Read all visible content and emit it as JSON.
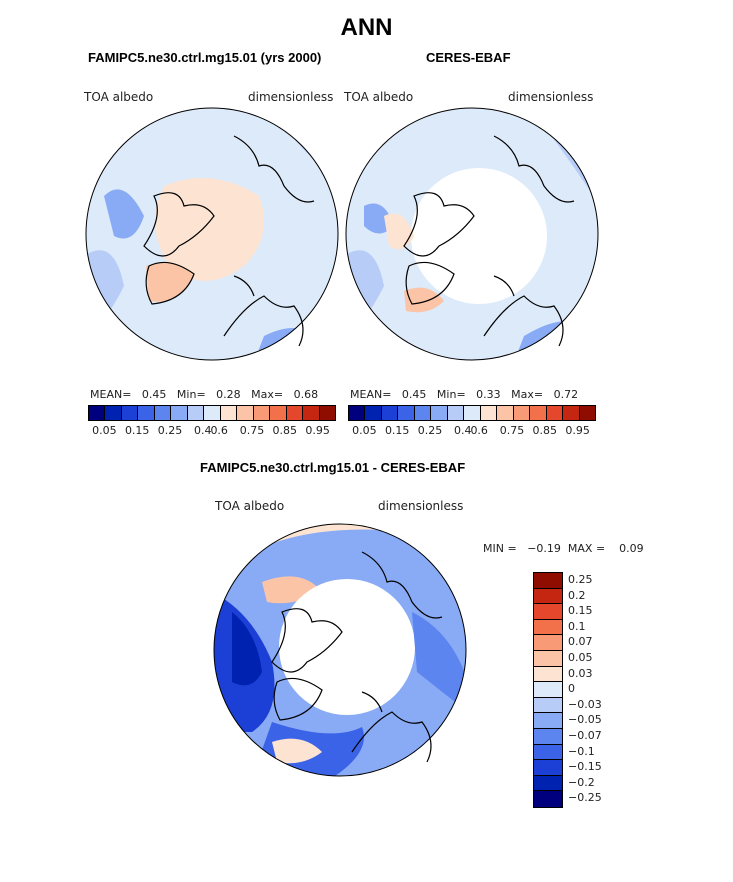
{
  "figure_title": "ANN",
  "panels": [
    {
      "title": "FAMIPC5.ne30.ctrl.mg15.01 (yrs 2000)",
      "var_label": "TOA albedo",
      "units": "dimensionless",
      "mean_label": "MEAN=",
      "mean": "0.45",
      "min_label": "Min=",
      "min": "0.28",
      "max_label": "Max=",
      "max": "0.68"
    },
    {
      "title": "CERES-EBAF",
      "var_label": "TOA albedo",
      "units": "dimensionless",
      "mean_label": "MEAN=",
      "mean": "0.45",
      "min_label": "Min=",
      "min": "0.33",
      "max_label": "Max=",
      "max": "0.72"
    },
    {
      "title": "FAMIPC5.ne30.ctrl.mg15.01 - CERES-EBAF",
      "var_label": "TOA albedo",
      "units": "dimensionless",
      "min_label": "MIN =",
      "min": "−0.19",
      "max_label": "MAX =",
      "max": "0.09"
    }
  ],
  "colorbar_abs": {
    "colors": [
      "#00007f",
      "#0022b0",
      "#1c3fd6",
      "#3b63e8",
      "#5c85f0",
      "#89abf5",
      "#b7ccf7",
      "#ddeafa",
      "#fde4d2",
      "#fcc4a6",
      "#f89a76",
      "#f2714a",
      "#e4472b",
      "#c42612",
      "#8f0c00"
    ],
    "tick_labels": [
      "0.05",
      "0.15",
      "0.25",
      "0.4",
      "0.6",
      "0.75",
      "0.85",
      "0.95"
    ]
  },
  "colorbar_diff": {
    "colors": [
      "#8f0c00",
      "#c42612",
      "#e4472b",
      "#f2714a",
      "#f89a76",
      "#fcc4a6",
      "#fde4d2",
      "#ddeafa",
      "#b7ccf7",
      "#89abf5",
      "#5c85f0",
      "#3b63e8",
      "#1c3fd6",
      "#0022b0",
      "#00007f"
    ],
    "labels": [
      "0.25",
      "0.2",
      "0.15",
      "0.1",
      "0.07",
      "0.05",
      "0.03",
      "0",
      "−0.03",
      "−0.05",
      "−0.07",
      "−0.1",
      "−0.15",
      "−0.2",
      "−0.25"
    ]
  },
  "chart_data": [
    {
      "type": "heatmap",
      "projection": "north polar stereographic",
      "title": "FAMIPC5.ne30.ctrl.mg15.01 (yrs 2000)",
      "variable": "TOA albedo",
      "units": "dimensionless",
      "mean": 0.45,
      "min": 0.28,
      "max": 0.68,
      "levels": [
        0.05,
        0.1,
        0.15,
        0.2,
        0.25,
        0.3,
        0.4,
        0.5,
        0.6,
        0.65,
        0.75,
        0.8,
        0.85,
        0.9,
        0.95
      ]
    },
    {
      "type": "heatmap",
      "projection": "north polar stereographic",
      "title": "CERES-EBAF",
      "variable": "TOA albedo",
      "units": "dimensionless",
      "mean": 0.45,
      "min": 0.33,
      "max": 0.72,
      "levels": [
        0.05,
        0.1,
        0.15,
        0.2,
        0.25,
        0.3,
        0.4,
        0.5,
        0.6,
        0.65,
        0.75,
        0.8,
        0.85,
        0.9,
        0.95
      ]
    },
    {
      "type": "heatmap",
      "projection": "north polar stereographic",
      "title": "FAMIPC5.ne30.ctrl.mg15.01 - CERES-EBAF",
      "variable": "TOA albedo",
      "units": "dimensionless",
      "min": -0.19,
      "max": 0.09,
      "levels": [
        -0.25,
        -0.2,
        -0.15,
        -0.1,
        -0.07,
        -0.05,
        -0.03,
        0,
        0.03,
        0.05,
        0.07,
        0.1,
        0.15,
        0.2,
        0.25
      ]
    }
  ]
}
